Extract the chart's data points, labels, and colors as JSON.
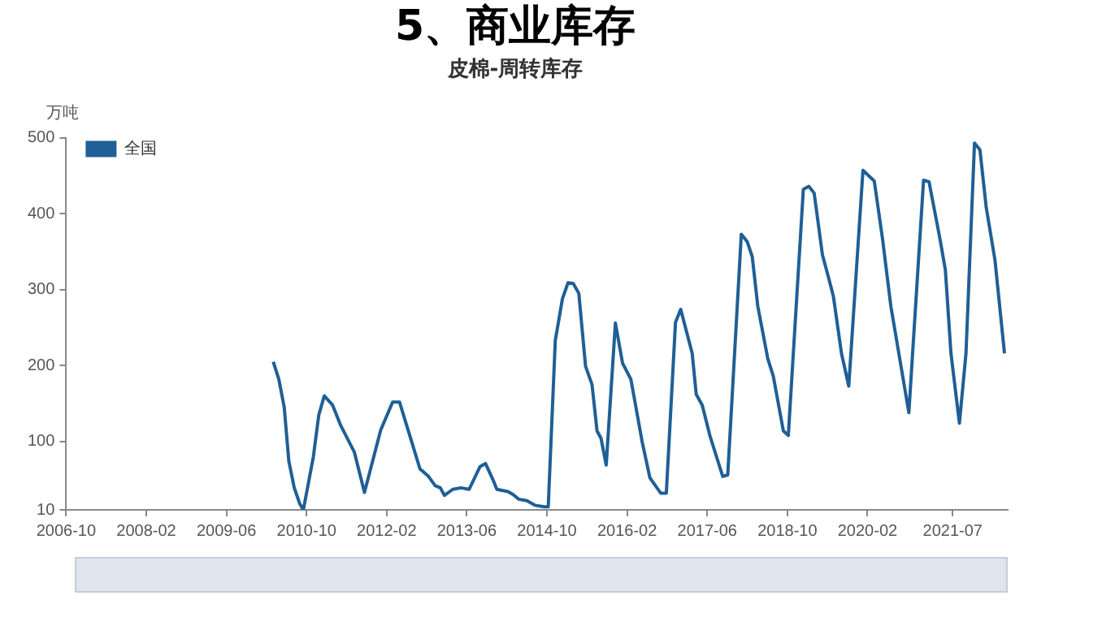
{
  "chart_data": {
    "type": "line",
    "title": "5、商业库存",
    "subtitle": "皮棉-周转库存",
    "ylabel": "万吨",
    "xlim": [
      "2006-10",
      "2022-06"
    ],
    "xticks": [
      {
        "value": "2006-10",
        "label": "2006-10"
      },
      {
        "value": "2008-02",
        "label": "2008-02"
      },
      {
        "value": "2009-06",
        "label": "2009-06"
      },
      {
        "value": "2010-10",
        "label": "2010-10"
      },
      {
        "value": "2012-02",
        "label": "2012-02"
      },
      {
        "value": "2013-06",
        "label": "2013-06"
      },
      {
        "value": "2014-10",
        "label": "2014-10"
      },
      {
        "value": "2016-02",
        "label": "2016-02"
      },
      {
        "value": "2017-06",
        "label": "2017-06"
      },
      {
        "value": "2018-10",
        "label": "2018-10"
      },
      {
        "value": "2020-02",
        "label": "2020-02"
      },
      {
        "value": "2021-07",
        "label": "2021-07"
      }
    ],
    "ylim": [
      10,
      500
    ],
    "yticks": [
      10,
      100,
      200,
      300,
      400,
      500
    ],
    "grid": false,
    "legend": "top left",
    "marker": "none",
    "line_style": "solid",
    "x": [
      "2010-03-12",
      "2010-04-15",
      "2010-05-18",
      "2010-06-15",
      "2010-07-18",
      "2010-08-21",
      "2010-09-12",
      "2010-11-12",
      "2010-12-15",
      "2011-01-18",
      "2011-03-07",
      "2011-04-26",
      "2011-06-15",
      "2011-07-18",
      "2011-09-18",
      "2011-12-26",
      "2012-03-07",
      "2012-04-18",
      "2012-06-01",
      "2012-08-21",
      "2012-10-12",
      "2012-11-21",
      "2012-12-23",
      "2013-01-18",
      "2013-03-07",
      "2013-04-26",
      "2013-06-15",
      "2013-08-21",
      "2013-09-23",
      "2013-11-07",
      "2013-12-01",
      "2014-02-07",
      "2014-03-09",
      "2014-04-12",
      "2014-06-01",
      "2014-07-21",
      "2014-09-15",
      "2014-10-09",
      "2014-11-21",
      "2015-01-04",
      "2015-02-07",
      "2015-03-09",
      "2015-04-12",
      "2015-05-23",
      "2015-07-01",
      "2015-08-01",
      "2015-08-26",
      "2015-09-26",
      "2015-11-21",
      "2016-01-04",
      "2016-02-23",
      "2016-05-01",
      "2016-06-18",
      "2016-08-23",
      "2016-09-26",
      "2016-11-21",
      "2016-12-23",
      "2017-03-01",
      "2017-03-26",
      "2017-05-01",
      "2017-06-18",
      "2017-09-04",
      "2017-10-04",
      "2017-12-26",
      "2018-02-01",
      "2018-03-01",
      "2018-04-04",
      "2018-06-04",
      "2018-07-07",
      "2018-09-07",
      "2018-10-07",
      "2019-01-07",
      "2019-02-09",
      "2019-03-12",
      "2019-05-01",
      "2019-06-04",
      "2019-07-07",
      "2019-08-26",
      "2019-10-09",
      "2020-01-04",
      "2020-03-12",
      "2020-05-01",
      "2020-06-21",
      "2020-08-09",
      "2020-10-09",
      "2021-01-07",
      "2021-02-09",
      "2021-04-15",
      "2021-05-18",
      "2021-06-21",
      "2021-08-12",
      "2021-09-21",
      "2021-11-12",
      "2021-12-15",
      "2022-01-23",
      "2022-03-15",
      "2022-05-12"
    ],
    "series": [
      {
        "name": "全国",
        "color": "#1f5f96",
        "values": [
          205,
          182,
          145,
          74,
          39,
          18,
          10,
          80,
          135,
          160,
          148,
          121,
          100,
          86,
          33,
          115,
          152,
          152,
          121,
          64,
          54,
          42,
          39,
          29,
          37,
          39,
          37,
          67,
          71,
          50,
          37,
          34,
          30,
          24,
          22,
          16,
          14,
          14,
          233,
          288,
          309,
          308,
          295,
          199,
          175,
          114,
          104,
          69,
          256,
          203,
          182,
          100,
          52,
          32,
          32,
          257,
          274,
          216,
          162,
          148,
          107,
          54,
          56,
          373,
          363,
          343,
          278,
          209,
          186,
          114,
          108,
          432,
          436,
          427,
          346,
          319,
          291,
          216,
          173,
          457,
          443,
          367,
          278,
          216,
          138,
          444,
          442,
          367,
          326,
          216,
          124,
          216,
          493,
          484,
          408,
          339,
          216
        ]
      }
    ]
  }
}
